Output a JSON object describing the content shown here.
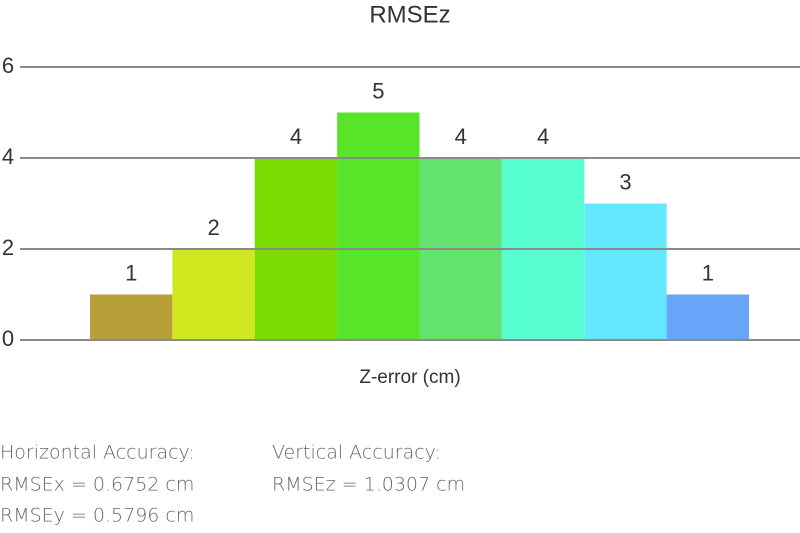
{
  "chart_data": {
    "type": "bar",
    "title": "RMSEz",
    "x_label": "Z-error (cm)",
    "categories": [
      null,
      null,
      null,
      null,
      null,
      null,
      null,
      null
    ],
    "values": [
      1,
      2,
      4,
      5,
      4,
      4,
      3,
      1
    ],
    "colors": [
      "#b8a038",
      "#d0e820",
      "#78dc00",
      "#58e428",
      "#64e270",
      "#58ffd0",
      "#64e8ff",
      "#6aa4f8"
    ],
    "ylim": [
      0,
      6
    ],
    "yticks": [
      0,
      2,
      4,
      6
    ],
    "grid": true
  },
  "accuracy": {
    "horizontal": {
      "heading": "Horizontal Accuracy:",
      "lines": [
        "RMSEx = 0.6752 cm",
        "RMSEy = 0.5796 cm"
      ]
    },
    "vertical": {
      "heading": "Vertical Accuracy:",
      "lines": [
        "RMSEz = 1.0307 cm"
      ]
    }
  }
}
